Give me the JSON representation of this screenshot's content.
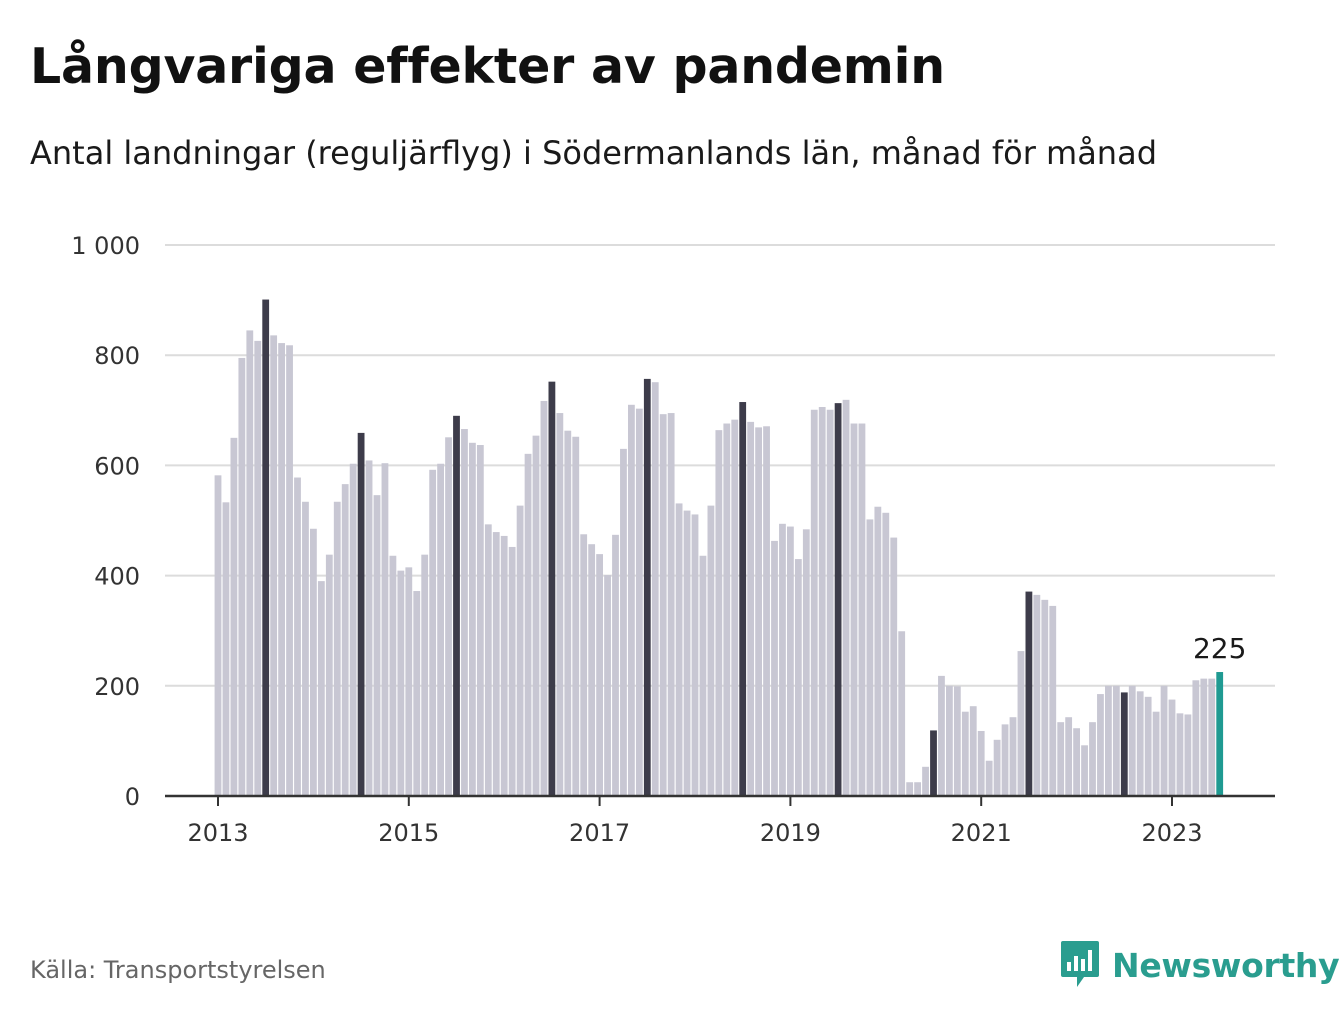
{
  "title": "Långvariga effekter av pandemin",
  "subtitle": "Antal landningar (reguljärflyg) i Södermanlands län, månad för månad",
  "source": "Källa: Transportstyrelsen",
  "logo_text": "Newsworthy",
  "logo_icon": "bar-chart-speech-bubble-icon",
  "colors": {
    "bar_default": "#c8c7d3",
    "bar_highlight": "#3d3c4a",
    "bar_latest": "#1f9a92",
    "grid": "#dcdcdc",
    "axis": "#333333",
    "logo": "#2a9d8f"
  },
  "chart_data": {
    "type": "bar",
    "start_year": 2013,
    "start_month": 1,
    "x_ticks": [
      "2013",
      "2015",
      "2017",
      "2019",
      "2021",
      "2023"
    ],
    "y_ticks": [
      "0",
      "200",
      "400",
      "600",
      "800",
      "1 000"
    ],
    "ylim": [
      0,
      1000
    ],
    "grid": true,
    "highlight_month": 7,
    "latest_label": "225",
    "values": [
      582,
      533,
      650,
      795,
      845,
      826,
      901,
      836,
      822,
      818,
      578,
      534,
      485,
      390,
      438,
      534,
      566,
      603,
      659,
      609,
      546,
      604,
      436,
      409,
      415,
      372,
      438,
      592,
      603,
      651,
      690,
      666,
      641,
      637,
      493,
      479,
      472,
      452,
      527,
      621,
      654,
      717,
      752,
      695,
      663,
      652,
      475,
      457,
      439,
      401,
      474,
      630,
      710,
      703,
      757,
      751,
      693,
      695,
      531,
      518,
      511,
      436,
      527,
      664,
      676,
      683,
      715,
      679,
      669,
      671,
      463,
      494,
      489,
      430,
      484,
      701,
      706,
      701,
      713,
      719,
      676,
      676,
      502,
      525,
      514,
      469,
      299,
      25,
      25,
      53,
      119,
      218,
      200,
      199,
      153,
      163,
      118,
      64,
      102,
      130,
      143,
      263,
      371,
      365,
      356,
      345,
      134,
      143,
      123,
      92,
      134,
      185,
      200,
      200,
      188,
      200,
      190,
      180,
      153,
      200,
      175,
      150,
      148,
      210,
      213,
      213,
      225
    ]
  }
}
